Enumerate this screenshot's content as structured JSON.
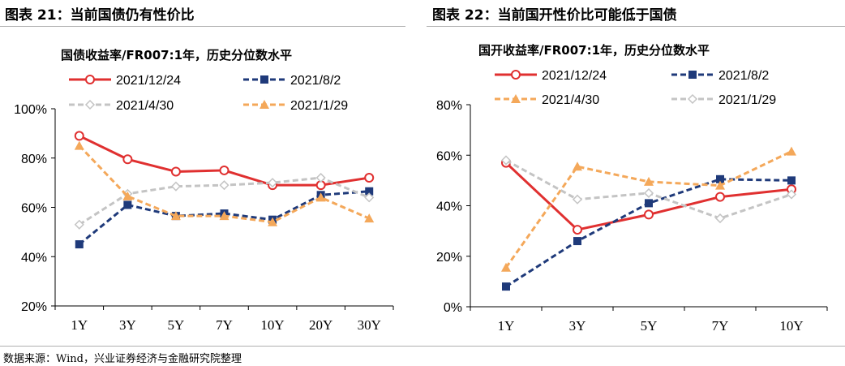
{
  "figures": {
    "left_title": "图表 21：当前国债仍有性价比",
    "right_title": "图表 22：当前国开性价比可能低于国债"
  },
  "source_note": "数据来源：Wind，兴业证券经济与金融研究院整理",
  "chart_data": [
    {
      "type": "line",
      "title": "国债收益率/FR007:1年，历史分位数水平",
      "categories": [
        "1Y",
        "3Y",
        "5Y",
        "7Y",
        "10Y",
        "20Y",
        "30Y"
      ],
      "ylim": [
        20,
        100
      ],
      "yticks": [
        20,
        40,
        60,
        80,
        100
      ],
      "ytick_labels": [
        "20%",
        "40%",
        "60%",
        "80%",
        "100%"
      ],
      "xlabel": "",
      "ylabel": "",
      "legend": "top",
      "series": [
        {
          "name": "2021/12/24",
          "color": "#e03030",
          "style": "solid",
          "marker": "circle-open",
          "values": [
            89,
            79.5,
            74.5,
            75,
            69,
            69,
            72
          ]
        },
        {
          "name": "2021/8/2",
          "color": "#1f3a7a",
          "style": "dashed",
          "marker": "square-filled",
          "values": [
            45,
            61,
            56.5,
            57.5,
            55,
            65,
            66.5
          ]
        },
        {
          "name": "2021/4/30",
          "color": "#c4c4c4",
          "style": "dashed",
          "marker": "diamond-open",
          "values": [
            53,
            65.5,
            68.5,
            69,
            70,
            72,
            64
          ]
        },
        {
          "name": "2021/1/29",
          "color": "#f4a85a",
          "style": "dashed",
          "marker": "triangle-filled",
          "values": [
            85,
            64.5,
            56.5,
            56.5,
            54,
            64,
            55.5
          ]
        }
      ]
    },
    {
      "type": "line",
      "title": "国开收益率/FR007:1年，历史分位数水平",
      "categories": [
        "1Y",
        "3Y",
        "5Y",
        "7Y",
        "10Y"
      ],
      "ylim": [
        0,
        80
      ],
      "yticks": [
        0,
        20,
        40,
        60,
        80
      ],
      "ytick_labels": [
        "0%",
        "20%",
        "40%",
        "60%",
        "80%"
      ],
      "xlabel": "",
      "ylabel": "",
      "legend": "top",
      "series": [
        {
          "name": "2021/12/24",
          "color": "#e03030",
          "style": "solid",
          "marker": "circle-open",
          "values": [
            57,
            30.5,
            36.5,
            43.5,
            46.5
          ]
        },
        {
          "name": "2021/8/2",
          "color": "#1f3a7a",
          "style": "dashed",
          "marker": "square-filled",
          "values": [
            8,
            26,
            41,
            50.5,
            50
          ]
        },
        {
          "name": "2021/4/30",
          "color": "#f4a85a",
          "style": "dashed",
          "marker": "triangle-filled",
          "values": [
            15.5,
            55.5,
            49.5,
            48,
            61.5
          ]
        },
        {
          "name": "2021/1/29",
          "color": "#c4c4c4",
          "style": "dashed",
          "marker": "diamond-open",
          "values": [
            58,
            42.5,
            45,
            35,
            44.5
          ]
        }
      ]
    }
  ]
}
